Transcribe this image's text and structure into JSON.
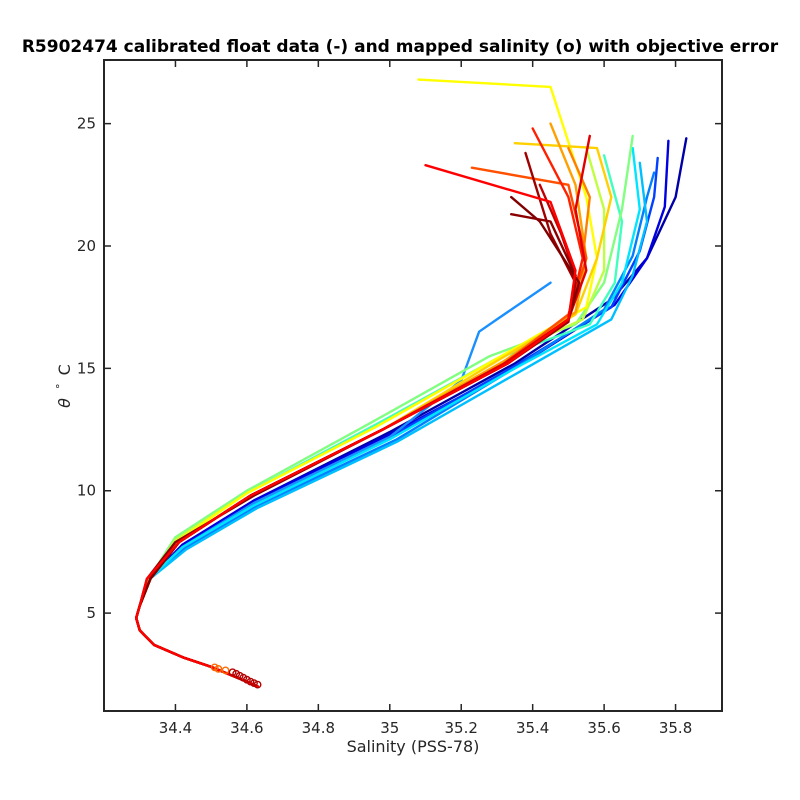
{
  "chart_data": {
    "type": "line",
    "title": "R5902474 calibrated float data (-) and mapped salinity (o) with objective error",
    "xlabel": "Salinity (PSS-78)",
    "ylabel_symbol": "θ",
    "ylabel_degree": "°",
    "ylabel_unit": "C",
    "xlim": [
      34.2,
      35.93
    ],
    "ylim": [
      1.0,
      27.6
    ],
    "xticks": [
      34.4,
      34.6,
      34.8,
      35,
      35.2,
      35.4,
      35.6,
      35.8
    ],
    "xtick_labels": [
      "34.4",
      "34.6",
      "34.8",
      "35",
      "35.2",
      "35.4",
      "35.6",
      "35.8"
    ],
    "yticks": [
      5,
      10,
      15,
      20,
      25
    ],
    "ytick_labels": [
      "5",
      "10",
      "15",
      "20",
      "25"
    ],
    "grid": false,
    "colormap": "jet",
    "colors": [
      "#00008f",
      "#0000ff",
      "#0080ff",
      "#00ffff",
      "#80ff80",
      "#ffff00",
      "#ff8000",
      "#ff0000",
      "#800000"
    ],
    "series": [
      {
        "color": "#0000a8",
        "x": [
          34.3,
          34.32,
          34.42,
          34.62,
          35.0,
          35.35,
          35.62,
          35.72,
          35.8,
          35.83
        ],
        "y": [
          5.3,
          6.3,
          7.8,
          9.6,
          12.4,
          15.2,
          17.8,
          19.5,
          22.0,
          24.4
        ]
      },
      {
        "color": "#0000e0",
        "x": [
          34.3,
          34.32,
          34.42,
          34.62,
          35.0,
          35.36,
          35.63,
          35.72,
          35.77,
          35.78
        ],
        "y": [
          5.3,
          6.3,
          7.8,
          9.6,
          12.3,
          15.1,
          17.6,
          19.5,
          21.6,
          24.3
        ]
      },
      {
        "color": "#0040ff",
        "x": [
          34.3,
          34.32,
          34.42,
          34.62,
          35.0,
          35.35,
          35.62,
          35.7,
          35.74,
          35.75
        ],
        "y": [
          5.3,
          6.3,
          7.7,
          9.5,
          12.2,
          15.1,
          17.5,
          19.8,
          22.0,
          23.6
        ]
      },
      {
        "color": "#0080ff",
        "x": [
          34.3,
          34.32,
          34.43,
          34.63,
          35.02,
          35.36,
          35.6,
          35.68,
          35.72,
          35.74
        ],
        "y": [
          5.3,
          6.3,
          7.7,
          9.4,
          12.1,
          15.1,
          17.4,
          19.6,
          22.0,
          23.0
        ]
      },
      {
        "color": "#1a90ff",
        "x": [
          34.3,
          34.32,
          34.42,
          34.62,
          35.0,
          35.2,
          35.25,
          35.3,
          35.45
        ],
        "y": [
          5.3,
          6.3,
          7.7,
          9.5,
          12.2,
          14.5,
          16.5,
          17.0,
          18.5
        ]
      },
      {
        "color": "#00bfff",
        "x": [
          34.3,
          34.32,
          34.43,
          34.63,
          35.02,
          35.38,
          35.62,
          35.68,
          35.72,
          35.7
        ],
        "y": [
          5.3,
          6.3,
          7.6,
          9.3,
          12.0,
          15.0,
          17.0,
          18.8,
          21.0,
          23.4
        ]
      },
      {
        "color": "#00e5ff",
        "x": [
          34.3,
          34.32,
          34.42,
          34.62,
          35.0,
          35.35,
          35.58,
          35.65,
          35.7,
          35.68
        ],
        "y": [
          5.3,
          6.3,
          7.7,
          9.4,
          12.1,
          15.0,
          16.8,
          18.5,
          21.5,
          24.0
        ]
      },
      {
        "color": "#40ffbf",
        "x": [
          34.3,
          34.33,
          34.4,
          34.6,
          34.96,
          35.3,
          35.56,
          35.63,
          35.65,
          35.6
        ],
        "y": [
          5.3,
          6.4,
          8.0,
          9.9,
          12.7,
          15.4,
          16.8,
          18.5,
          21.0,
          23.7
        ]
      },
      {
        "color": "#80ff80",
        "x": [
          34.3,
          34.33,
          34.4,
          34.6,
          34.95,
          35.28,
          35.52,
          35.6,
          35.65,
          35.68
        ],
        "y": [
          5.3,
          6.5,
          8.1,
          10.0,
          12.8,
          15.5,
          16.8,
          18.5,
          21.5,
          24.5
        ]
      },
      {
        "color": "#c0ff40",
        "x": [
          34.3,
          34.33,
          34.4,
          34.6,
          34.96,
          35.3,
          35.54,
          35.6,
          35.6,
          35.55
        ],
        "y": [
          5.3,
          6.4,
          8.0,
          9.9,
          12.6,
          15.4,
          17.0,
          19.0,
          21.5,
          24.0
        ]
      },
      {
        "color": "#ffff00",
        "x": [
          34.3,
          34.33,
          34.4,
          34.6,
          34.96,
          35.3,
          35.55,
          35.58,
          35.55,
          35.45,
          35.08
        ],
        "y": [
          5.3,
          6.4,
          7.9,
          9.9,
          12.6,
          15.4,
          17.5,
          19.5,
          22.0,
          26.5,
          26.8
        ]
      },
      {
        "color": "#ffd000",
        "x": [
          34.3,
          34.33,
          34.41,
          34.61,
          34.98,
          35.3,
          35.52,
          35.58,
          35.62,
          35.58,
          35.35
        ],
        "y": [
          5.3,
          6.4,
          7.9,
          9.8,
          12.5,
          15.3,
          17.2,
          19.5,
          22.0,
          24.0,
          24.2
        ]
      },
      {
        "color": "#ffa000",
        "x": [
          34.3,
          34.33,
          34.41,
          34.61,
          34.98,
          35.32,
          35.52,
          35.55,
          35.52,
          35.45
        ],
        "y": [
          5.3,
          6.4,
          7.9,
          9.8,
          12.5,
          15.3,
          17.3,
          19.5,
          22.5,
          25.0
        ]
      },
      {
        "color": "#ff8000",
        "x": [
          34.3,
          34.33,
          34.41,
          34.61,
          34.98,
          35.32,
          35.5,
          35.54,
          35.56,
          35.5
        ],
        "y": [
          5.3,
          6.4,
          7.9,
          9.8,
          12.5,
          15.2,
          17.0,
          19.5,
          22.0,
          24.0
        ]
      },
      {
        "color": "#ff5000",
        "x": [
          34.3,
          34.33,
          34.41,
          34.61,
          34.98,
          35.32,
          35.5,
          35.55,
          35.5,
          35.23
        ],
        "y": [
          5.3,
          6.4,
          7.9,
          9.8,
          12.5,
          15.2,
          17.2,
          19.5,
          22.5,
          23.2
        ]
      },
      {
        "color": "#ff2000",
        "x": [
          34.3,
          34.33,
          34.41,
          34.61,
          34.98,
          35.32,
          35.5,
          35.54,
          35.5,
          35.4
        ],
        "y": [
          5.3,
          6.4,
          7.9,
          9.8,
          12.5,
          15.2,
          17.0,
          19.5,
          22.0,
          24.8
        ]
      },
      {
        "color": "#e00000",
        "x": [
          34.3,
          34.33,
          34.41,
          34.61,
          34.98,
          35.32,
          35.5,
          35.55,
          35.52,
          35.56
        ],
        "y": [
          5.3,
          6.4,
          7.9,
          9.8,
          12.5,
          15.2,
          17.0,
          19.0,
          21.5,
          24.5
        ]
      },
      {
        "color": "#c00000",
        "x": [
          34.3,
          34.33,
          34.41,
          34.61,
          34.98,
          35.33,
          35.5,
          35.52,
          35.48,
          35.42
        ],
        "y": [
          5.3,
          6.4,
          7.9,
          9.8,
          12.5,
          15.2,
          17.0,
          18.8,
          20.5,
          22.5
        ]
      },
      {
        "color": "#a00000",
        "x": [
          34.3,
          34.33,
          34.41,
          34.61,
          34.98,
          35.33,
          35.5,
          35.52,
          35.45,
          35.38
        ],
        "y": [
          5.3,
          6.4,
          7.9,
          9.8,
          12.5,
          15.2,
          16.9,
          18.5,
          20.5,
          23.8
        ]
      },
      {
        "color": "#800000",
        "x": [
          34.3,
          34.33,
          34.41,
          34.61,
          34.98,
          35.33,
          35.5,
          35.53,
          35.42,
          35.34
        ],
        "y": [
          5.3,
          6.4,
          7.9,
          9.8,
          12.5,
          15.2,
          17.0,
          18.5,
          21.0,
          22.0
        ]
      },
      {
        "color": "#8a0000",
        "x": [
          34.3,
          34.32,
          34.4,
          34.62,
          34.98,
          35.33,
          35.5,
          35.52,
          35.45,
          35.34
        ],
        "y": [
          5.3,
          6.4,
          7.9,
          9.8,
          12.5,
          15.2,
          17.0,
          18.8,
          21.0,
          21.3
        ]
      },
      {
        "color": "#ff0000",
        "x": [
          34.3,
          34.32,
          34.41,
          34.61,
          34.98,
          35.33,
          35.5,
          35.52,
          35.45,
          35.1
        ],
        "y": [
          5.3,
          6.4,
          7.9,
          9.8,
          12.5,
          15.2,
          17.0,
          19.0,
          21.8,
          23.3
        ]
      }
    ],
    "deep_tail": {
      "x": [
        34.3,
        34.29,
        34.3,
        34.34,
        34.42,
        34.5,
        34.55,
        34.6,
        34.63
      ],
      "y": [
        5.3,
        4.8,
        4.3,
        3.7,
        3.2,
        2.8,
        2.5,
        2.2,
        2.0
      ]
    },
    "mapped_points": {
      "marker": "o",
      "x": [
        34.51,
        34.52,
        34.54,
        34.56,
        34.57,
        34.58,
        34.59,
        34.6,
        34.61,
        34.62,
        34.63
      ],
      "y": [
        2.78,
        2.72,
        2.66,
        2.58,
        2.52,
        2.44,
        2.36,
        2.28,
        2.2,
        2.14,
        2.08
      ]
    }
  }
}
